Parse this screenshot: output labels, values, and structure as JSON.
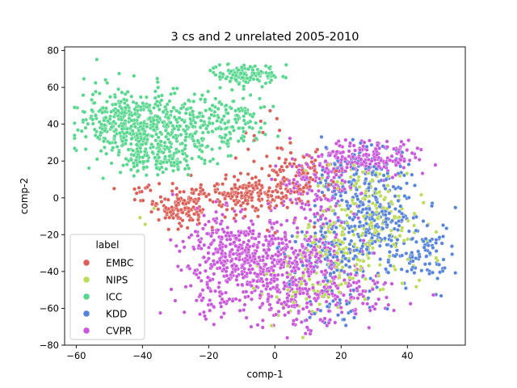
{
  "chart_data": {
    "type": "scatter",
    "title": "3 cs and 2 unrelated 2005-2010",
    "xlabel": "comp-1",
    "ylabel": "comp-2",
    "xlim": [
      -63.5,
      57.5
    ],
    "ylim": [
      -80,
      82
    ],
    "xticks": [
      -60,
      -40,
      -20,
      0,
      20,
      40
    ],
    "yticks": [
      -80,
      -60,
      -40,
      -20,
      0,
      20,
      40,
      60,
      80
    ],
    "grid": false,
    "legend": {
      "title": "label",
      "position": "lower-left"
    },
    "series": [
      {
        "name": "EMBC",
        "color": "#db5f57",
        "clusters": [
          {
            "cx": -28,
            "cy": -5,
            "sx": 4.5,
            "sy": 5,
            "n": 130
          },
          {
            "cx": -10,
            "cy": 2,
            "sx": 6,
            "sy": 5,
            "n": 150
          },
          {
            "cx": 3,
            "cy": 8,
            "sx": 5,
            "sy": 9,
            "n": 90
          },
          {
            "cx": -40,
            "cy": 2,
            "sx": 3,
            "sy": 3,
            "n": 15
          },
          {
            "cx": -5,
            "cy": 33,
            "sx": 6,
            "sy": 6,
            "n": 12
          },
          {
            "cx": 12,
            "cy": 18,
            "sx": 5,
            "sy": 6,
            "n": 25
          }
        ]
      },
      {
        "name": "NIPS",
        "color": "#b9db57",
        "clusters": [
          {
            "cx": 18,
            "cy": -30,
            "sx": 8,
            "sy": 12,
            "n": 120
          },
          {
            "cx": 32,
            "cy": -15,
            "sx": 8,
            "sy": 12,
            "n": 90
          },
          {
            "cx": 25,
            "cy": 5,
            "sx": 7,
            "sy": 8,
            "n": 60
          },
          {
            "cx": 10,
            "cy": -50,
            "sx": 10,
            "sy": 8,
            "n": 50
          },
          {
            "cx": -38,
            "cy": -10,
            "sx": 2,
            "sy": 2,
            "n": 3
          }
        ]
      },
      {
        "name": "ICC",
        "color": "#57d68d",
        "clusters": [
          {
            "cx": -43,
            "cy": 40,
            "sx": 7,
            "sy": 10,
            "n": 330
          },
          {
            "cx": -25,
            "cy": 40,
            "sx": 7,
            "sy": 8,
            "n": 210
          },
          {
            "cx": -33,
            "cy": 22,
            "sx": 6,
            "sy": 5,
            "n": 140
          },
          {
            "cx": -10,
            "cy": 40,
            "sx": 4,
            "sy": 8,
            "n": 70
          },
          {
            "cx": -9,
            "cy": 67,
            "sx": 5,
            "sy": 3,
            "n": 120
          },
          {
            "cx": -52,
            "cy": 42,
            "sx": 3,
            "sy": 6,
            "n": 40
          }
        ]
      },
      {
        "name": "KDD",
        "color": "#5784db",
        "clusters": [
          {
            "cx": 30,
            "cy": -15,
            "sx": 7,
            "sy": 12,
            "n": 230
          },
          {
            "cx": 25,
            "cy": 12,
            "sx": 8,
            "sy": 9,
            "n": 120
          },
          {
            "cx": 45,
            "cy": -30,
            "sx": 4,
            "sy": 9,
            "n": 80
          },
          {
            "cx": 15,
            "cy": -30,
            "sx": 6,
            "sy": 10,
            "n": 90
          },
          {
            "cx": 20,
            "cy": -60,
            "sx": 6,
            "sy": 6,
            "n": 30
          }
        ]
      },
      {
        "name": "CVPR",
        "color": "#c957db",
        "clusters": [
          {
            "cx": -12,
            "cy": -30,
            "sx": 8,
            "sy": 10,
            "n": 330
          },
          {
            "cx": 5,
            "cy": -40,
            "sx": 10,
            "sy": 14,
            "n": 420
          },
          {
            "cx": 28,
            "cy": 22,
            "sx": 7,
            "sy": 5,
            "n": 190
          },
          {
            "cx": 12,
            "cy": 5,
            "sx": 6,
            "sy": 9,
            "n": 130
          },
          {
            "cx": 20,
            "cy": -55,
            "sx": 8,
            "sy": 6,
            "n": 90
          },
          {
            "cx": -18,
            "cy": -55,
            "sx": 5,
            "sy": 5,
            "n": 40
          }
        ]
      }
    ]
  }
}
